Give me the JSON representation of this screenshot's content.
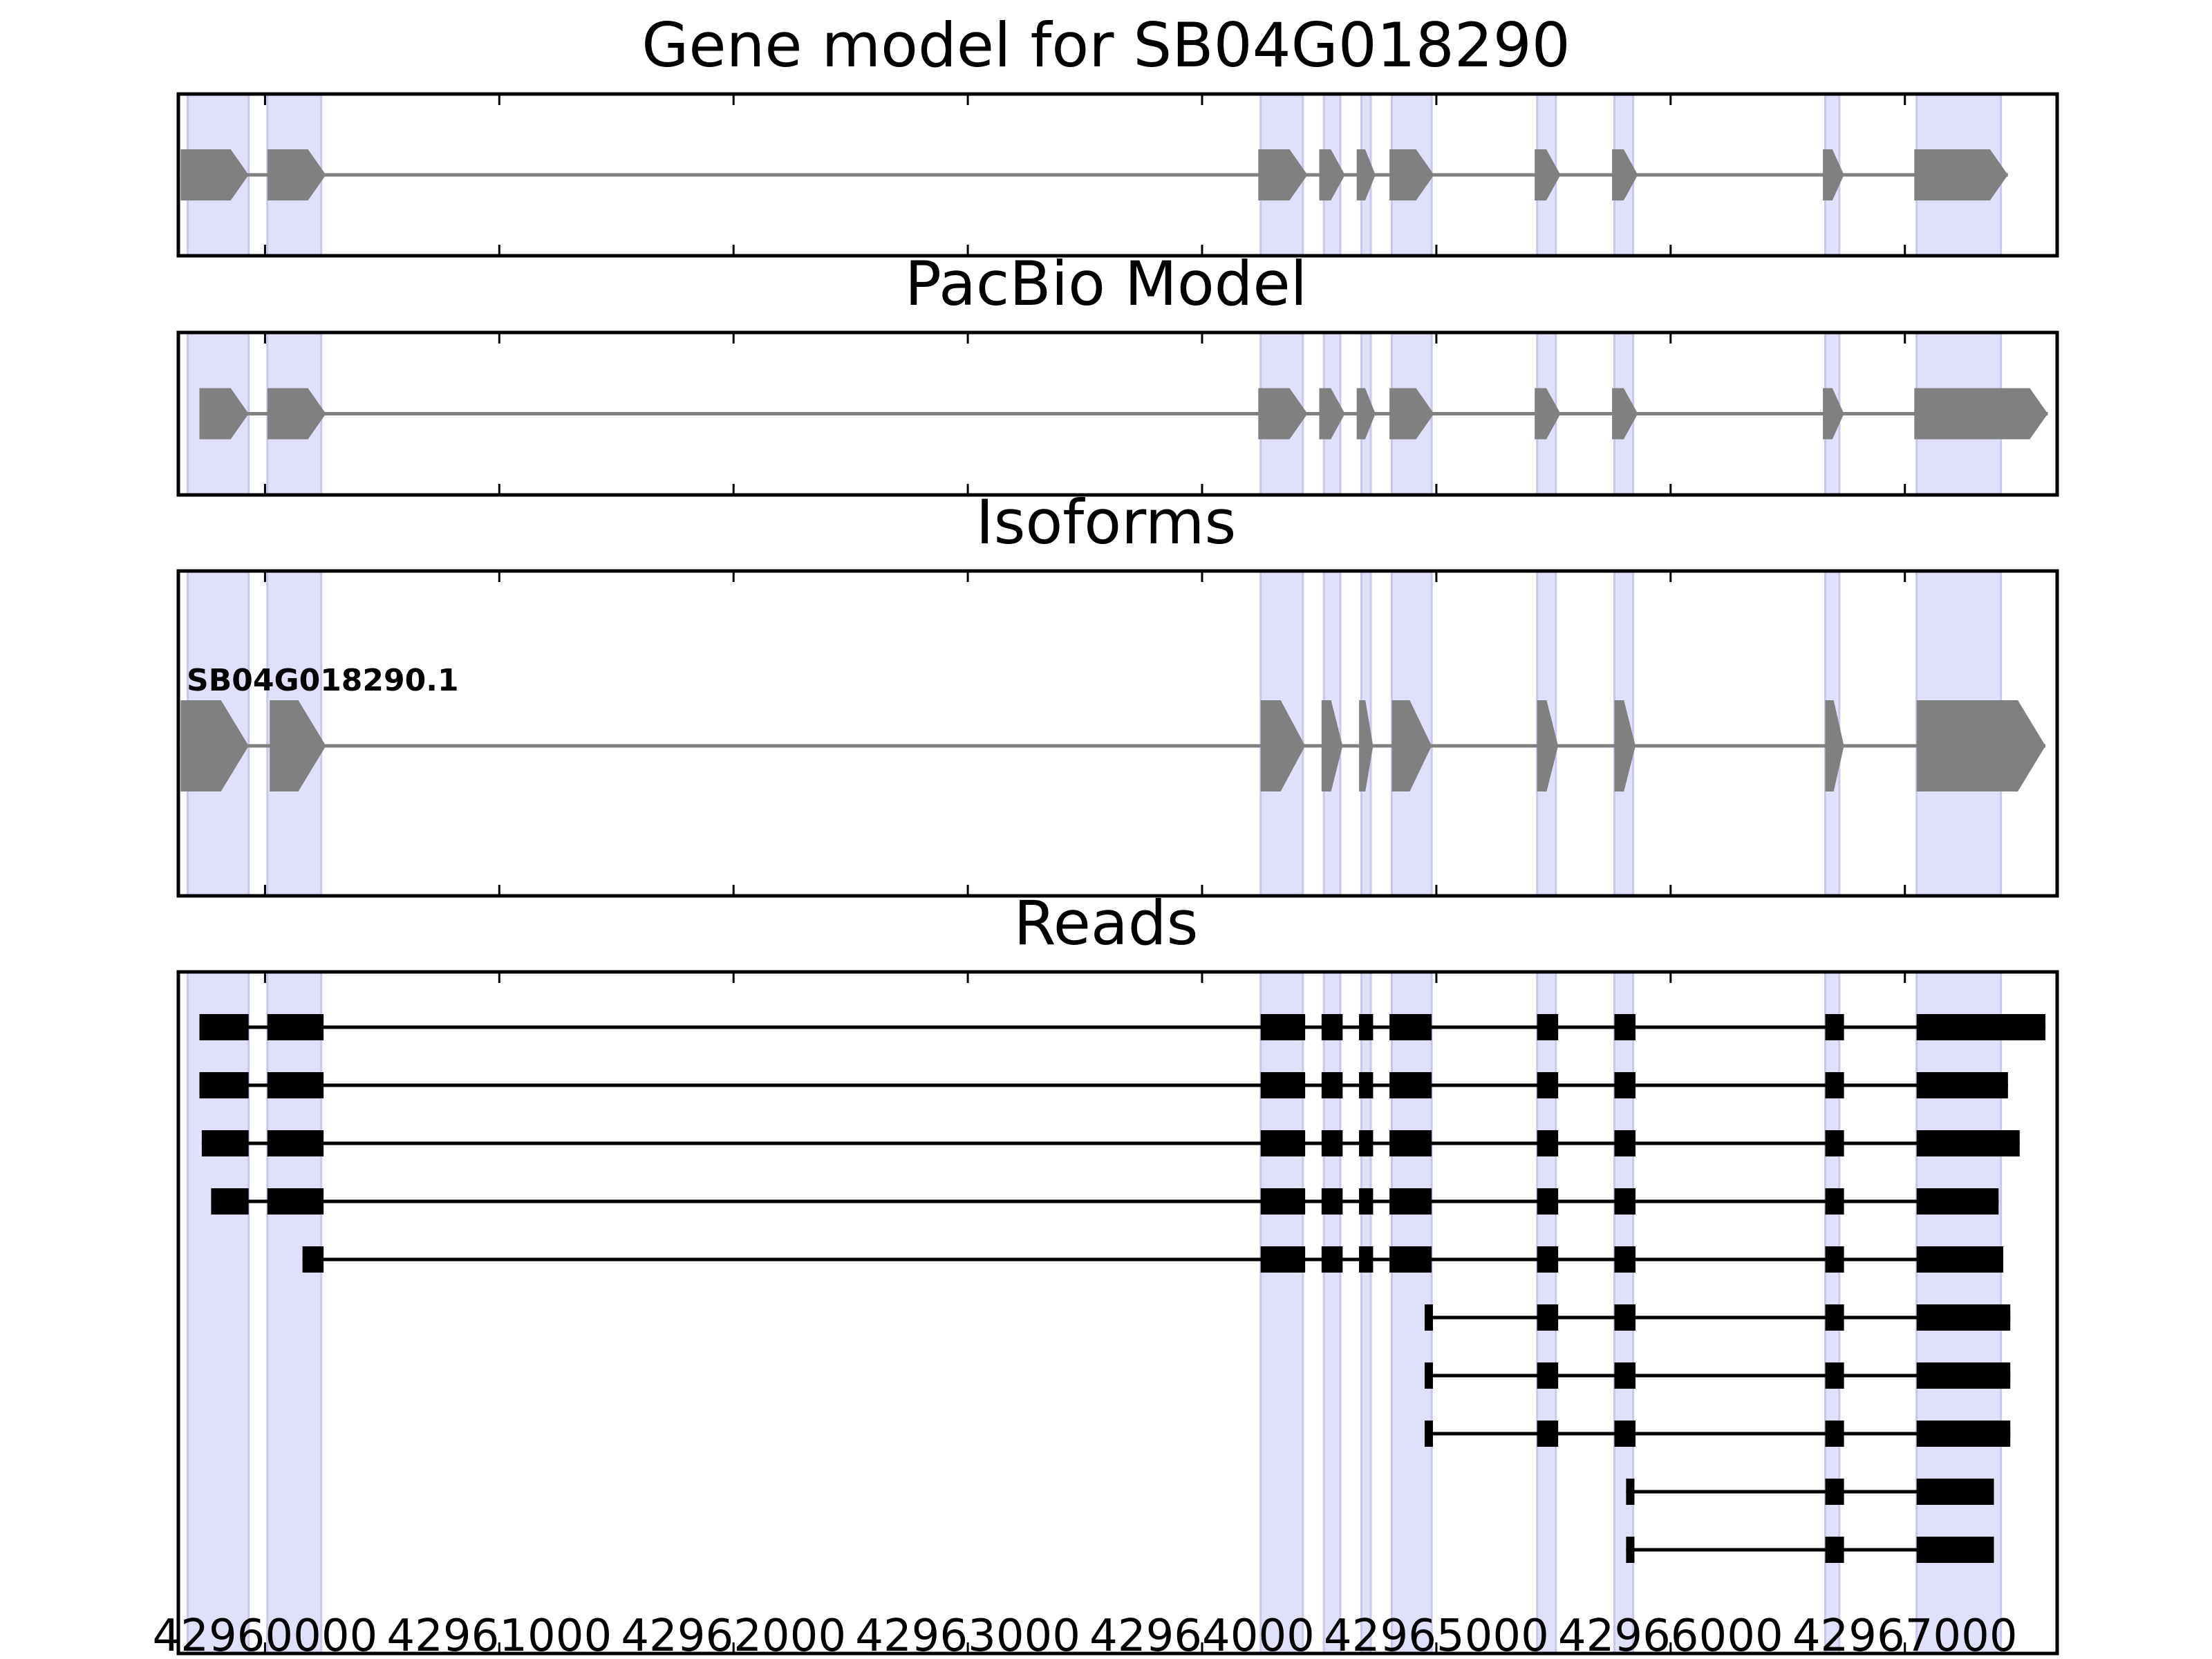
{
  "chart_data": {
    "type": "gene-structure",
    "x_axis": {
      "xlim": [
        42959630,
        42967650
      ],
      "ticks": [
        42960000,
        42961000,
        42962000,
        42963000,
        42964000,
        42965000,
        42966000,
        42967000
      ],
      "tick_labels": [
        "42960000",
        "42961000",
        "42962000",
        "42963000",
        "42964000",
        "42965000",
        "42966000",
        "42967000"
      ]
    },
    "exon_highlights": [
      [
        42959670,
        42959930
      ],
      [
        42960010,
        42960240
      ],
      [
        42964250,
        42964430
      ],
      [
        42964520,
        42964590
      ],
      [
        42964680,
        42964720
      ],
      [
        42964810,
        42964980
      ],
      [
        42965430,
        42965510
      ],
      [
        42965760,
        42965840
      ],
      [
        42966660,
        42966720
      ],
      [
        42967050,
        42967410
      ]
    ],
    "colors": {
      "highlight": "#e0e0fa",
      "highlight_edge": "#c8c8ee",
      "model_fill": "#808080",
      "intron_line": "#808080",
      "read": "#000000",
      "axes": "#000000"
    },
    "panels": [
      {
        "title": "Gene model for SB04G018290",
        "kind": "model",
        "tracks": [
          {
            "label": "",
            "exons": [
              [
                42959640,
                42959930
              ],
              [
                42960010,
                42960260
              ],
              [
                42964240,
                42964450
              ],
              [
                42964500,
                42964610
              ],
              [
                42964660,
                42964740
              ],
              [
                42964800,
                42964990
              ],
              [
                42965420,
                42965530
              ],
              [
                42965750,
                42965860
              ],
              [
                42966650,
                42966740
              ],
              [
                42967040,
                42967440
              ]
            ]
          }
        ]
      },
      {
        "title": "PacBio Model",
        "kind": "model",
        "tracks": [
          {
            "label": "",
            "exons": [
              [
                42959720,
                42959930
              ],
              [
                42960010,
                42960260
              ],
              [
                42964240,
                42964450
              ],
              [
                42964500,
                42964610
              ],
              [
                42964660,
                42964740
              ],
              [
                42964800,
                42964990
              ],
              [
                42965420,
                42965530
              ],
              [
                42965750,
                42965860
              ],
              [
                42966650,
                42966740
              ],
              [
                42967040,
                42967610
              ]
            ]
          }
        ]
      },
      {
        "title": "Isoforms",
        "kind": "model",
        "tracks": [
          {
            "label": "SB04G018290.1",
            "exons": [
              [
                42959640,
                42959930
              ],
              [
                42960020,
                42960260
              ],
              [
                42964250,
                42964440
              ],
              [
                42964510,
                42964600
              ],
              [
                42964670,
                42964730
              ],
              [
                42964810,
                42964980
              ],
              [
                42965430,
                42965520
              ],
              [
                42965760,
                42965850
              ],
              [
                42966660,
                42966740
              ],
              [
                42967050,
                42967600
              ]
            ]
          }
        ]
      },
      {
        "title": "Reads",
        "kind": "reads",
        "tracks": [
          {
            "exons": [
              [
                42959720,
                42959930
              ],
              [
                42960010,
                42960250
              ],
              [
                42964250,
                42964440
              ],
              [
                42964510,
                42964600
              ],
              [
                42964670,
                42964730
              ],
              [
                42964800,
                42964980
              ],
              [
                42965430,
                42965520
              ],
              [
                42965760,
                42965850
              ],
              [
                42966660,
                42966740
              ],
              [
                42967050,
                42967600
              ]
            ]
          },
          {
            "exons": [
              [
                42959720,
                42959930
              ],
              [
                42960010,
                42960250
              ],
              [
                42964250,
                42964440
              ],
              [
                42964510,
                42964600
              ],
              [
                42964670,
                42964730
              ],
              [
                42964800,
                42964980
              ],
              [
                42965430,
                42965520
              ],
              [
                42965760,
                42965850
              ],
              [
                42966660,
                42966740
              ],
              [
                42967050,
                42967440
              ]
            ]
          },
          {
            "exons": [
              [
                42959730,
                42959930
              ],
              [
                42960010,
                42960250
              ],
              [
                42964250,
                42964440
              ],
              [
                42964510,
                42964600
              ],
              [
                42964670,
                42964730
              ],
              [
                42964800,
                42964980
              ],
              [
                42965430,
                42965520
              ],
              [
                42965760,
                42965850
              ],
              [
                42966660,
                42966740
              ],
              [
                42967050,
                42967490
              ]
            ]
          },
          {
            "exons": [
              [
                42959770,
                42959930
              ],
              [
                42960010,
                42960250
              ],
              [
                42964250,
                42964440
              ],
              [
                42964510,
                42964600
              ],
              [
                42964670,
                42964730
              ],
              [
                42964800,
                42964980
              ],
              [
                42965430,
                42965520
              ],
              [
                42965760,
                42965850
              ],
              [
                42966660,
                42966740
              ],
              [
                42967050,
                42967400
              ]
            ]
          },
          {
            "exons": [
              [
                42960160,
                42960250
              ],
              [
                42964250,
                42964440
              ],
              [
                42964510,
                42964600
              ],
              [
                42964670,
                42964730
              ],
              [
                42964800,
                42964980
              ],
              [
                42965430,
                42965520
              ],
              [
                42965760,
                42965850
              ],
              [
                42966660,
                42966740
              ],
              [
                42967050,
                42967420
              ]
            ]
          },
          {
            "exons": [
              [
                42964950,
                42964980
              ],
              [
                42965430,
                42965520
              ],
              [
                42965760,
                42965850
              ],
              [
                42966660,
                42966740
              ],
              [
                42967050,
                42967450
              ]
            ]
          },
          {
            "exons": [
              [
                42964950,
                42964980
              ],
              [
                42965430,
                42965520
              ],
              [
                42965760,
                42965850
              ],
              [
                42966660,
                42966740
              ],
              [
                42967050,
                42967450
              ]
            ]
          },
          {
            "exons": [
              [
                42964950,
                42964980
              ],
              [
                42965430,
                42965520
              ],
              [
                42965760,
                42965850
              ],
              [
                42966660,
                42966740
              ],
              [
                42967050,
                42967450
              ]
            ]
          },
          {
            "exons": [
              [
                42965810,
                42965840
              ],
              [
                42966660,
                42966740
              ],
              [
                42967050,
                42967380
              ]
            ]
          },
          {
            "exons": [
              [
                42965810,
                42965840
              ],
              [
                42966660,
                42966740
              ],
              [
                42967050,
                42967380
              ]
            ]
          }
        ]
      }
    ]
  }
}
